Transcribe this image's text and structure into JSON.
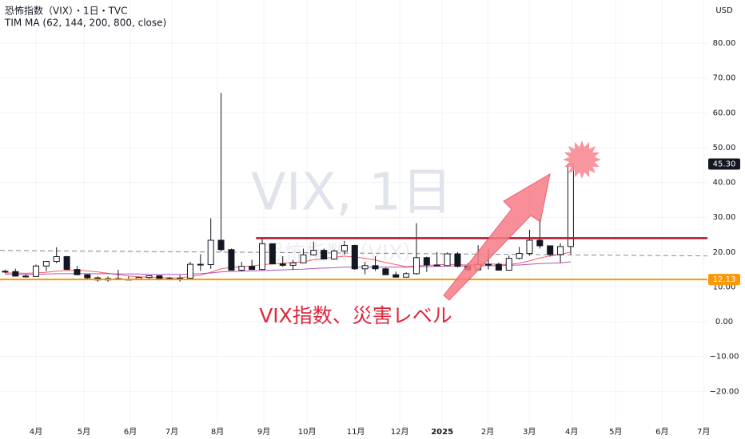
{
  "chart_data": {
    "type": "candlestick",
    "title": "恐怖指数（VIX）・1日・TVC",
    "subtitle": "TIM MA (62, 144, 200, 800, close)",
    "watermark": "VIX, 1日",
    "watermark_sub": "恐怖指数（VIX）",
    "currency": "USD",
    "annotation": "VIX指数、災害レベル",
    "categories": [
      null,
      null,
      null,
      null,
      null,
      null,
      null,
      null,
      null,
      null,
      null,
      null,
      null,
      null,
      null,
      null,
      null,
      null,
      null,
      null,
      null,
      null,
      null,
      null,
      null,
      null,
      null,
      null,
      null,
      null,
      null,
      null,
      null,
      null,
      null,
      null,
      null,
      null,
      null,
      null,
      null,
      null,
      null,
      null,
      null,
      null,
      null,
      null,
      null,
      null,
      null,
      null,
      null,
      null,
      null,
      null
    ],
    "open": [
      14.5,
      14.4,
      13.1,
      13.0,
      16.0,
      17.3,
      18.7,
      15.0,
      13.5,
      12.6,
      12.0,
      12.4,
      12.2,
      12.2,
      12.7,
      13.2,
      12.4,
      12.5,
      12.5,
      16.5,
      16.4,
      23.4,
      20.7,
      14.8,
      15.9,
      15.0,
      22.4,
      16.6,
      16.2,
      16.9,
      19.2,
      20.5,
      18.0,
      20.3,
      21.9,
      15.2,
      16.1,
      15.2,
      13.5,
      12.8,
      13.8,
      18.4,
      16.3,
      16.1,
      19.5,
      15.9,
      14.9,
      16.4,
      16.5,
      14.8,
      18.2,
      19.6,
      23.4,
      21.8,
      19.3,
      21.6
    ],
    "high": [
      15.0,
      15.2,
      13.6,
      16.4,
      17.3,
      21.4,
      18.9,
      16.0,
      13.6,
      13.0,
      13.0,
      14.9,
      13.0,
      13.0,
      13.3,
      13.3,
      12.9,
      13.4,
      17.2,
      19.4,
      29.7,
      65.7,
      21.0,
      17.2,
      17.8,
      23.8,
      22.4,
      18.8,
      17.8,
      21.0,
      23.0,
      21.0,
      20.7,
      23.2,
      22.1,
      17.2,
      18.8,
      15.5,
      14.4,
      14.2,
      28.3,
      18.7,
      20.0,
      19.9,
      20.0,
      16.8,
      22.0,
      21.0,
      17.0,
      19.0,
      21.5,
      26.4,
      29.6,
      21.8,
      22.5,
      45.3
    ],
    "low": [
      13.9,
      13.0,
      12.7,
      13.0,
      14.5,
      16.8,
      14.9,
      13.4,
      12.3,
      11.5,
      11.5,
      12.2,
      11.9,
      11.9,
      12.0,
      11.9,
      11.9,
      11.5,
      12.4,
      14.6,
      15.2,
      20.2,
      14.7,
      14.5,
      14.9,
      14.9,
      16.5,
      15.8,
      14.9,
      16.9,
      19.0,
      17.9,
      17.8,
      19.2,
      14.9,
      13.6,
      14.6,
      13.5,
      12.7,
      12.8,
      13.5,
      14.3,
      16.1,
      15.9,
      15.6,
      14.5,
      14.8,
      15.0,
      14.7,
      14.9,
      17.9,
      19.0,
      21.0,
      18.7,
      16.9,
      19.3
    ],
    "close": [
      14.4,
      13.1,
      13.0,
      16.0,
      17.3,
      18.7,
      15.0,
      13.5,
      12.6,
      12.0,
      12.4,
      12.2,
      12.2,
      12.7,
      13.2,
      12.4,
      12.5,
      12.5,
      16.5,
      16.4,
      23.4,
      20.7,
      14.8,
      15.9,
      15.0,
      22.4,
      16.6,
      16.2,
      16.9,
      19.2,
      20.5,
      18.0,
      20.3,
      21.9,
      15.2,
      16.1,
      15.2,
      13.5,
      12.8,
      13.8,
      18.4,
      16.3,
      16.1,
      19.5,
      15.9,
      14.9,
      16.4,
      16.5,
      14.8,
      18.2,
      19.6,
      23.4,
      21.8,
      19.3,
      21.6,
      45.3
    ],
    "up_color": "#ffffff",
    "down_color": "#131722",
    "series": [
      {
        "color": "#f23645",
        "values": [
          14.0,
          14.0,
          13.9,
          14.0,
          14.2,
          14.5,
          14.7,
          14.8,
          14.6,
          14.3,
          13.9,
          13.5,
          13.1,
          12.9,
          12.8,
          12.7,
          12.6,
          12.6,
          13.0,
          13.4,
          14.2,
          15.2,
          15.6,
          15.8,
          16.0,
          16.4,
          16.6,
          16.8,
          17.0,
          17.2,
          17.8,
          18.2,
          18.5,
          18.8,
          18.6,
          18.2,
          17.7,
          17.0,
          16.4,
          15.8,
          16.0,
          16.2,
          16.3,
          16.5,
          16.4,
          16.3,
          16.5,
          16.6,
          16.5,
          16.4,
          16.8,
          17.5,
          18.3,
          18.9,
          19.3,
          20.0
        ]
      },
      {
        "color": "#9c27b0",
        "values": [
          13.6,
          13.6,
          13.6,
          13.6,
          13.7,
          13.8,
          13.8,
          13.8,
          13.8,
          13.8,
          13.8,
          13.7,
          13.7,
          13.7,
          13.6,
          13.6,
          13.6,
          13.6,
          13.7,
          13.8,
          14.0,
          14.3,
          14.4,
          14.5,
          14.6,
          14.7,
          14.8,
          14.9,
          15.0,
          15.1,
          15.3,
          15.4,
          15.5,
          15.7,
          15.7,
          15.7,
          15.7,
          15.7,
          15.7,
          15.7,
          15.8,
          15.8,
          15.9,
          16.0,
          16.0,
          16.0,
          16.1,
          16.1,
          16.1,
          16.2,
          16.3,
          16.5,
          16.7,
          16.8,
          16.9,
          17.2
        ]
      }
    ],
    "trendline": {
      "x": [
        -0.5,
        68.3
      ],
      "values": [
        20.5,
        18.9
      ]
    },
    "resistance": {
      "x": [
        24.4,
        68.3
      ],
      "value": 24.0,
      "color": "#b2182b"
    },
    "support": {
      "value": 12.13,
      "label": "12.13",
      "color": "#ff9800"
    },
    "last_price": {
      "value": 45.3,
      "label": "45.30"
    },
    "xlim": [
      -0.5,
      68.3
    ],
    "xticks": [
      {
        "value": 3,
        "label": "4月"
      },
      {
        "value": 7.67,
        "label": "5月"
      },
      {
        "value": 12.18,
        "label": "6月"
      },
      {
        "value": 16.22,
        "label": "7月"
      },
      {
        "value": 20.65,
        "label": "8月"
      },
      {
        "value": 25.16,
        "label": "9月"
      },
      {
        "value": 29.36,
        "label": "10月"
      },
      {
        "value": 34.1,
        "label": "11月"
      },
      {
        "value": 38.38,
        "label": "12月"
      },
      {
        "value": 42.5,
        "label": "2025"
      },
      {
        "value": 46.93,
        "label": "2月"
      },
      {
        "value": 50.98,
        "label": "3月"
      },
      {
        "value": 55.1,
        "label": "4月"
      },
      {
        "value": 59.38,
        "label": "5月"
      },
      {
        "value": 63.89,
        "label": "6月"
      },
      {
        "value": 67.93,
        "label": "7月"
      }
    ],
    "ylim": [
      -29.1,
      92.4
    ],
    "yticks": [
      {
        "value": 80,
        "label": "80.00"
      },
      {
        "value": 70,
        "label": "70.00"
      },
      {
        "value": 60,
        "label": "60.00"
      },
      {
        "value": 50,
        "label": "50.00"
      },
      {
        "value": 40,
        "label": "40.00"
      },
      {
        "value": 30,
        "label": "30.00"
      },
      {
        "value": 20,
        "label": "20.00"
      },
      {
        "value": 10,
        "label": "10.00"
      },
      {
        "value": 0,
        "label": "0.00"
      },
      {
        "value": -10,
        "label": "−10.00"
      },
      {
        "value": -20,
        "label": "−20.00"
      }
    ],
    "grid": true
  }
}
